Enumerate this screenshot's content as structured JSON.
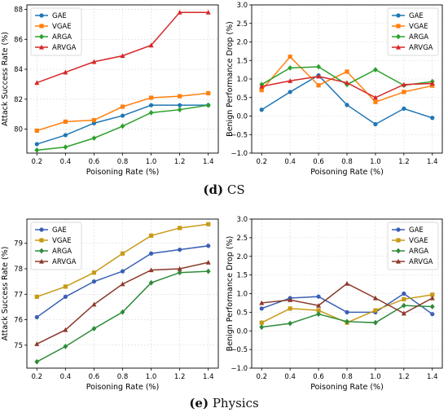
{
  "captions": [
    {
      "label": "(d)",
      "text": "CS"
    },
    {
      "label": "(e)",
      "text": "Physics"
    }
  ],
  "colors": {
    "GAE": "#1f77b4",
    "VGAE": "#ff7f0e",
    "ARGA": "#2ca02c",
    "ARVGA": "#d62728"
  },
  "colors_e": {
    "GAE": "#3a5fb5",
    "VGAE": "#c79a16",
    "ARGA": "#2e8b3a",
    "ARVGA": "#8b3a2a"
  },
  "chart_data": [
    {
      "id": "d-left",
      "type": "line",
      "xlabel": "Poisoning Rate (%)",
      "ylabel": "Attack Success Rate (%)",
      "x": [
        0.2,
        0.4,
        0.6,
        0.8,
        1.0,
        1.2,
        1.4
      ],
      "xticks": [
        "0.2",
        "0.4",
        "0.6",
        "0.8",
        "1.0",
        "1.2",
        "1.4"
      ],
      "ylim": [
        78.4,
        88.3
      ],
      "yticks": [
        80,
        82,
        84,
        86,
        88
      ],
      "yticklabels": [
        "80",
        "82",
        "84",
        "86",
        "88"
      ],
      "grid": true,
      "legend": "top-left",
      "palette": "d",
      "series": [
        {
          "name": "GAE",
          "marker": "circle",
          "values": [
            79.0,
            79.6,
            80.4,
            80.9,
            81.6,
            81.6,
            81.6
          ]
        },
        {
          "name": "VGAE",
          "marker": "square",
          "values": [
            79.9,
            80.5,
            80.6,
            81.5,
            82.1,
            82.2,
            82.4
          ]
        },
        {
          "name": "ARGA",
          "marker": "diamond",
          "values": [
            78.6,
            78.8,
            79.4,
            80.2,
            81.1,
            81.3,
            81.6
          ]
        },
        {
          "name": "ARVGA",
          "marker": "triangle",
          "values": [
            83.1,
            83.8,
            84.5,
            84.9,
            85.6,
            87.8,
            87.8
          ]
        }
      ]
    },
    {
      "id": "d-right",
      "type": "line",
      "xlabel": "Poisoning Rate (%)",
      "ylabel": "Benign Performance Drop (%)",
      "x": [
        0.2,
        0.4,
        0.6,
        0.8,
        1.0,
        1.2,
        1.4
      ],
      "xticks": [
        "0.2",
        "0.4",
        "0.6",
        "0.8",
        "1.0",
        "1.2",
        "1.4"
      ],
      "ylim": [
        -1.0,
        3.0
      ],
      "yticks": [
        -1.0,
        -0.5,
        0.0,
        0.5,
        1.0,
        1.5,
        2.0,
        2.5,
        3.0
      ],
      "yticklabels": [
        "−1.0",
        "−0.5",
        "0.0",
        "0.5",
        "1.0",
        "1.5",
        "2.0",
        "2.5",
        "3.0"
      ],
      "grid": true,
      "legend": "top-right",
      "palette": "d",
      "series": [
        {
          "name": "GAE",
          "marker": "circle",
          "values": [
            0.17,
            0.65,
            1.1,
            0.3,
            -0.22,
            0.2,
            -0.05
          ]
        },
        {
          "name": "VGAE",
          "marker": "square",
          "values": [
            0.7,
            1.6,
            0.83,
            1.2,
            0.38,
            0.65,
            0.82
          ]
        },
        {
          "name": "ARGA",
          "marker": "diamond",
          "values": [
            0.85,
            1.3,
            1.33,
            0.85,
            1.25,
            0.83,
            0.93
          ]
        },
        {
          "name": "ARVGA",
          "marker": "triangle",
          "values": [
            0.8,
            0.95,
            1.07,
            0.9,
            0.5,
            0.85,
            0.88
          ]
        }
      ]
    },
    {
      "id": "e-left",
      "type": "line",
      "xlabel": "Poisoning Rate (%)",
      "ylabel": "Attack Success Rate (%)",
      "x": [
        0.2,
        0.4,
        0.6,
        0.8,
        1.0,
        1.2,
        1.4
      ],
      "xticks": [
        "0.2",
        "0.4",
        "0.6",
        "0.8",
        "1.0",
        "1.2",
        "1.4"
      ],
      "ylim": [
        74.1,
        79.95
      ],
      "yticks": [
        75,
        76,
        77,
        78,
        79
      ],
      "yticklabels": [
        "75",
        "76",
        "77",
        "78",
        "79"
      ],
      "grid": true,
      "legend": "top-left",
      "palette": "e",
      "series": [
        {
          "name": "GAE",
          "marker": "circle",
          "values": [
            76.1,
            76.9,
            77.5,
            77.9,
            78.6,
            78.75,
            78.9
          ]
        },
        {
          "name": "VGAE",
          "marker": "square",
          "values": [
            76.9,
            77.3,
            77.85,
            78.6,
            79.3,
            79.6,
            79.75
          ]
        },
        {
          "name": "ARGA",
          "marker": "diamond",
          "values": [
            74.35,
            74.95,
            75.65,
            76.3,
            77.45,
            77.85,
            77.9
          ]
        },
        {
          "name": "ARVGA",
          "marker": "triangle",
          "values": [
            75.05,
            75.6,
            76.6,
            77.4,
            77.95,
            78.0,
            78.25
          ]
        }
      ]
    },
    {
      "id": "e-right",
      "type": "line",
      "xlabel": "Poisoning Rate (%)",
      "ylabel": "Benign Performance Drop (%)",
      "x": [
        0.2,
        0.4,
        0.6,
        0.8,
        1.0,
        1.2,
        1.4
      ],
      "xticks": [
        "0.2",
        "0.4",
        "0.6",
        "0.8",
        "1.0",
        "1.2",
        "1.4"
      ],
      "ylim": [
        -1.0,
        3.0
      ],
      "yticks": [
        -1.0,
        -0.5,
        0.0,
        0.5,
        1.0,
        1.5,
        2.0,
        2.5,
        3.0
      ],
      "yticklabels": [
        "−1.0",
        "−0.5",
        "0.0",
        "0.5",
        "1.0",
        "1.5",
        "2.0",
        "2.5",
        "3.0"
      ],
      "grid": true,
      "legend": "top-right",
      "palette": "e",
      "series": [
        {
          "name": "GAE",
          "marker": "circle",
          "values": [
            0.6,
            0.88,
            0.92,
            0.5,
            0.5,
            1.0,
            0.45
          ]
        },
        {
          "name": "VGAE",
          "marker": "square",
          "values": [
            0.22,
            0.6,
            0.55,
            0.22,
            0.55,
            0.85,
            0.97
          ]
        },
        {
          "name": "ARGA",
          "marker": "diamond",
          "values": [
            0.1,
            0.2,
            0.45,
            0.25,
            0.22,
            0.68,
            0.65
          ]
        },
        {
          "name": "ARVGA",
          "marker": "triangle",
          "values": [
            0.75,
            0.83,
            0.68,
            1.27,
            0.88,
            0.47,
            0.88
          ]
        }
      ]
    }
  ]
}
